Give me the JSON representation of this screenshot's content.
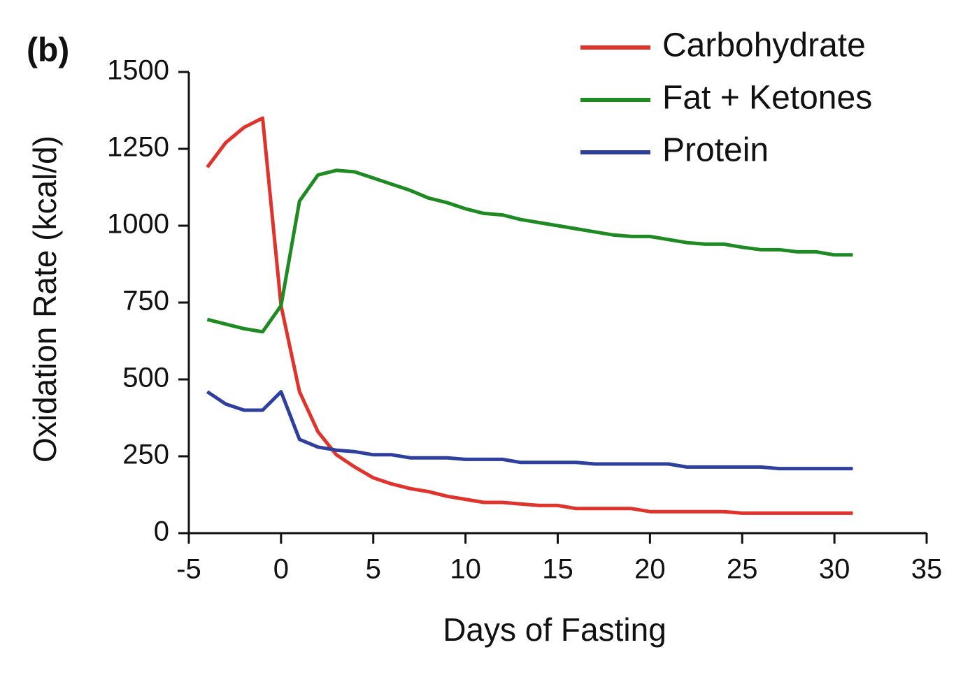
{
  "chart_data": {
    "type": "line",
    "panel_label": "(b)",
    "xlabel": "Days of Fasting",
    "ylabel": "Oxidation Rate (kcal/d)",
    "x": [
      -4,
      -3,
      -2,
      -1,
      0,
      1,
      2,
      3,
      4,
      5,
      6,
      7,
      8,
      9,
      10,
      11,
      12,
      13,
      14,
      15,
      16,
      17,
      18,
      19,
      20,
      21,
      22,
      23,
      24,
      25,
      26,
      27,
      28,
      29,
      30,
      31
    ],
    "series": [
      {
        "name": "Carbohydrate",
        "color": "#e0332c",
        "values": [
          1190,
          1270,
          1320,
          1350,
          740,
          460,
          330,
          255,
          215,
          180,
          160,
          145,
          135,
          120,
          110,
          100,
          100,
          95,
          90,
          90,
          80,
          80,
          80,
          80,
          70,
          70,
          70,
          70,
          70,
          65,
          65,
          65,
          65,
          65,
          65,
          65
        ]
      },
      {
        "name": "Fat + Ketones",
        "color": "#1e8a22",
        "values": [
          695,
          680,
          665,
          655,
          740,
          1080,
          1165,
          1180,
          1175,
          1155,
          1135,
          1115,
          1090,
          1075,
          1055,
          1040,
          1035,
          1020,
          1010,
          1000,
          990,
          980,
          970,
          965,
          965,
          955,
          945,
          940,
          940,
          930,
          922,
          922,
          915,
          915,
          905,
          905
        ]
      },
      {
        "name": "Protein",
        "color": "#2f3f9e",
        "values": [
          460,
          420,
          400,
          400,
          460,
          305,
          280,
          270,
          265,
          255,
          255,
          245,
          245,
          245,
          240,
          240,
          240,
          230,
          230,
          230,
          230,
          225,
          225,
          225,
          225,
          225,
          215,
          215,
          215,
          215,
          215,
          210,
          210,
          210,
          210,
          210
        ]
      }
    ],
    "xlim": [
      -5,
      35
    ],
    "xticks": [
      -5,
      0,
      5,
      10,
      15,
      20,
      25,
      30,
      35
    ],
    "ylim": [
      0,
      1500
    ],
    "yticks": [
      0,
      250,
      500,
      750,
      1000,
      1250,
      1500
    ],
    "legend": "upper right"
  }
}
